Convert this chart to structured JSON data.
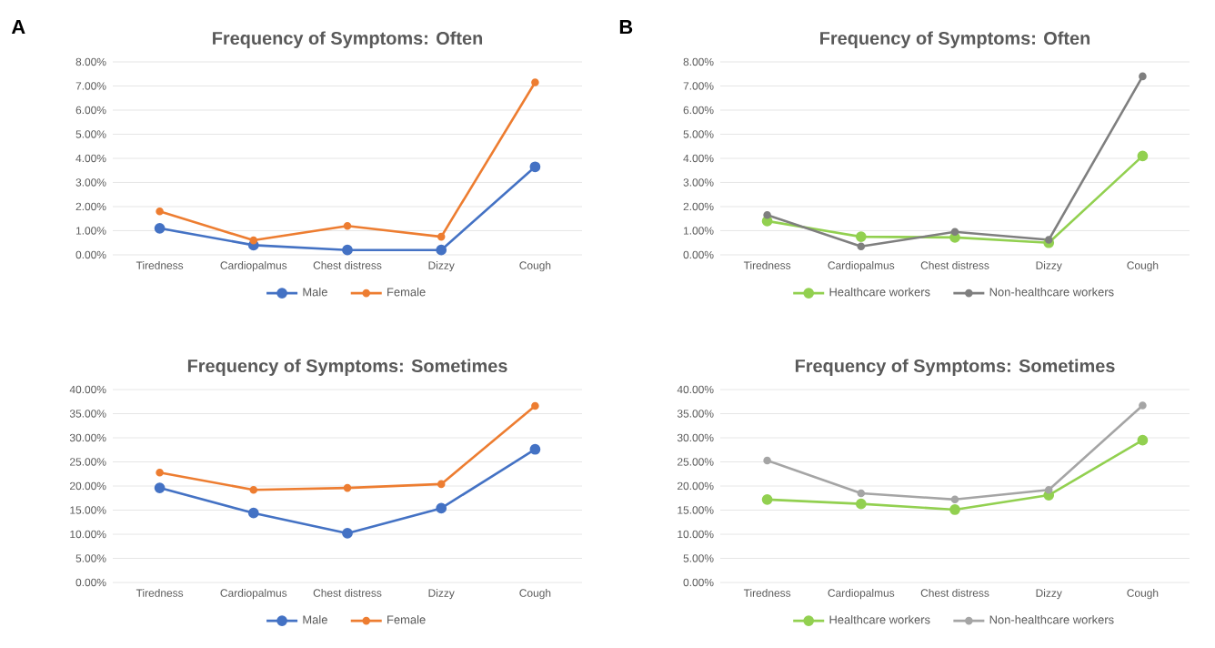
{
  "chart_data": [
    {
      "type": "line",
      "title": "Frequency of Symptoms: Often",
      "annotations": [
        "A"
      ],
      "categories": [
        "Tiredness",
        "Cardiopalmus",
        "Chest distress",
        "Dizzy",
        "Cough"
      ],
      "series": [
        {
          "name": "Male",
          "color": "#4472c4",
          "values": [
            1.1,
            0.4,
            0.2,
            0.2,
            3.65
          ]
        },
        {
          "name": "Female",
          "color": "#ed7d31",
          "values": [
            1.8,
            0.6,
            1.2,
            0.75,
            7.15
          ]
        }
      ],
      "ylim": [
        0,
        8
      ],
      "yticks": [
        {
          "value": 0,
          "label": "0.00%"
        },
        {
          "value": 1,
          "label": "1.00%"
        },
        {
          "value": 2,
          "label": "2.00%"
        },
        {
          "value": 3,
          "label": "3.00%"
        },
        {
          "value": 4,
          "label": "4.00%"
        },
        {
          "value": 5,
          "label": "5.00%"
        },
        {
          "value": 6,
          "label": "6.00%"
        },
        {
          "value": 7,
          "label": "7.00%"
        },
        {
          "value": 8,
          "label": "8.00%"
        }
      ],
      "grid": "y",
      "legend": "bottom",
      "marker": "circle",
      "line_style": "solid"
    },
    {
      "type": "line",
      "title": "Frequency of Symptoms: Often",
      "annotations": [
        "B"
      ],
      "categories": [
        "Tiredness",
        "Cardiopalmus",
        "Chest distress",
        "Dizzy",
        "Cough"
      ],
      "series": [
        {
          "name": "Healthcare workers",
          "color": "#92d050",
          "values": [
            1.4,
            0.75,
            0.72,
            0.5,
            4.1
          ]
        },
        {
          "name": "Non-healthcare workers",
          "color": "#7f7f7f",
          "values": [
            1.65,
            0.35,
            0.95,
            0.62,
            7.4
          ]
        }
      ],
      "ylim": [
        0,
        8
      ],
      "yticks": [
        {
          "value": 0,
          "label": "0.00%"
        },
        {
          "value": 1,
          "label": "1.00%"
        },
        {
          "value": 2,
          "label": "2.00%"
        },
        {
          "value": 3,
          "label": "3.00%"
        },
        {
          "value": 4,
          "label": "4.00%"
        },
        {
          "value": 5,
          "label": "5.00%"
        },
        {
          "value": 6,
          "label": "6.00%"
        },
        {
          "value": 7,
          "label": "7.00%"
        },
        {
          "value": 8,
          "label": "8.00%"
        }
      ],
      "grid": "y",
      "legend": "bottom",
      "marker": "circle",
      "line_style": "solid"
    },
    {
      "type": "line",
      "title": "Frequency of Symptoms: Sometimes",
      "categories": [
        "Tiredness",
        "Cardiopalmus",
        "Chest distress",
        "Dizzy",
        "Cough"
      ],
      "series": [
        {
          "name": "Male",
          "color": "#4472c4",
          "values": [
            19.6,
            14.4,
            10.2,
            15.4,
            27.6
          ]
        },
        {
          "name": "Female",
          "color": "#ed7d31",
          "values": [
            22.8,
            19.2,
            19.6,
            20.4,
            36.6
          ]
        }
      ],
      "ylim": [
        0,
        40
      ],
      "yticks": [
        {
          "value": 0,
          "label": "0.00%"
        },
        {
          "value": 5,
          "label": "5.00%"
        },
        {
          "value": 10,
          "label": "10.00%"
        },
        {
          "value": 15,
          "label": "15.00%"
        },
        {
          "value": 20,
          "label": "20.00%"
        },
        {
          "value": 25,
          "label": "25.00%"
        },
        {
          "value": 30,
          "label": "30.00%"
        },
        {
          "value": 35,
          "label": "35.00%"
        },
        {
          "value": 40,
          "label": "40.00%"
        }
      ],
      "grid": "y",
      "legend": "bottom",
      "marker": "circle",
      "line_style": "solid"
    },
    {
      "type": "line",
      "title": "Frequency of Symptoms: Sometimes",
      "categories": [
        "Tiredness",
        "Cardiopalmus",
        "Chest distress",
        "Dizzy",
        "Cough"
      ],
      "series": [
        {
          "name": "Healthcare workers",
          "color": "#92d050",
          "values": [
            17.2,
            16.3,
            15.1,
            18.1,
            29.5
          ]
        },
        {
          "name": "Non-healthcare workers",
          "color": "#a5a5a5",
          "values": [
            25.3,
            18.5,
            17.2,
            19.2,
            36.7
          ]
        }
      ],
      "ylim": [
        0,
        40
      ],
      "yticks": [
        {
          "value": 0,
          "label": "0.00%"
        },
        {
          "value": 5,
          "label": "5.00%"
        },
        {
          "value": 10,
          "label": "10.00%"
        },
        {
          "value": 15,
          "label": "15.00%"
        },
        {
          "value": 20,
          "label": "20.00%"
        },
        {
          "value": 25,
          "label": "25.00%"
        },
        {
          "value": 30,
          "label": "30.00%"
        },
        {
          "value": 35,
          "label": "35.00%"
        },
        {
          "value": 40,
          "label": "40.00%"
        }
      ],
      "grid": "y",
      "legend": "bottom",
      "marker": "circle",
      "line_style": "solid"
    }
  ]
}
